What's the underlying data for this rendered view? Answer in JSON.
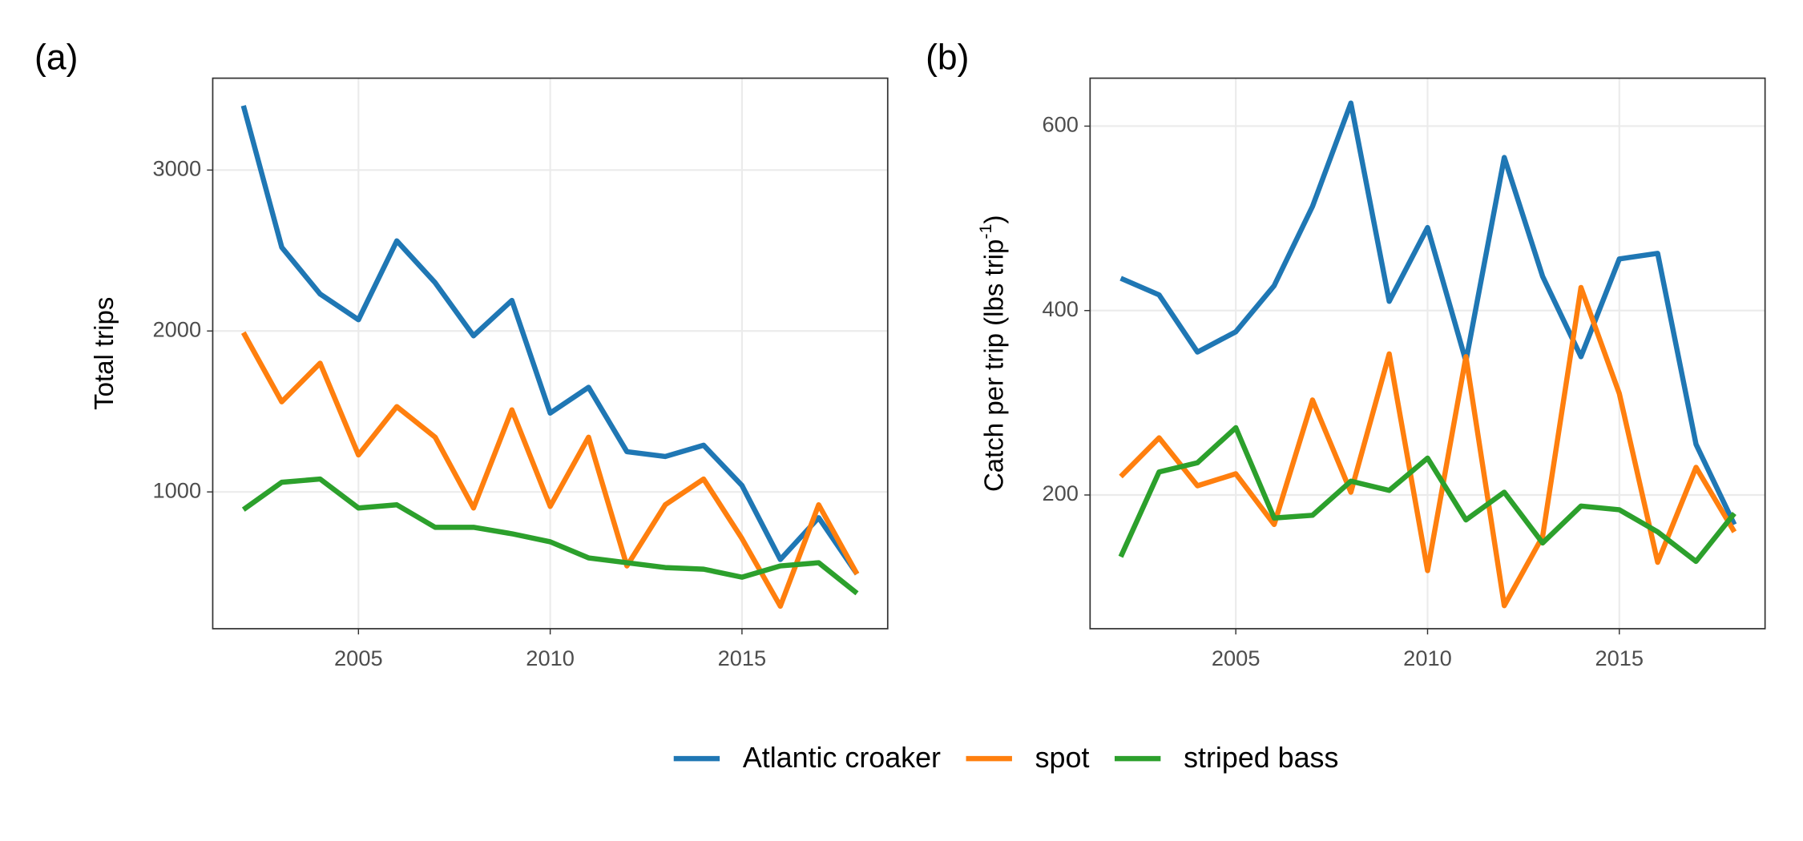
{
  "chart_data": [
    {
      "type": "line",
      "panel_label": "(a)",
      "ylabel": "Total trips",
      "x": [
        2002,
        2003,
        2004,
        2005,
        2006,
        2007,
        2008,
        2009,
        2010,
        2011,
        2012,
        2013,
        2014,
        2015,
        2016,
        2017,
        2018
      ],
      "xlim": [
        2001.2,
        2018.8
      ],
      "xticks": [
        2005,
        2010,
        2015
      ],
      "ylim": [
        150,
        3571
      ],
      "yticks": [
        1000,
        2000,
        3000
      ],
      "grid": true,
      "series": [
        {
          "name": "Atlantic croaker",
          "color": "#1f77b4",
          "values": [
            3400,
            2520,
            2230,
            2070,
            2560,
            2300,
            1970,
            2190,
            1490,
            1650,
            1250,
            1220,
            1290,
            1040,
            580,
            840,
            490
          ]
        },
        {
          "name": "spot",
          "color": "#ff7f0e",
          "values": [
            1990,
            1560,
            1800,
            1230,
            1530,
            1340,
            900,
            1510,
            910,
            1340,
            540,
            920,
            1080,
            710,
            290,
            920,
            490
          ]
        },
        {
          "name": "striped bass",
          "color": "#2ca02c",
          "values": [
            890,
            1060,
            1080,
            900,
            920,
            780,
            780,
            740,
            690,
            590,
            560,
            530,
            520,
            470,
            540,
            560,
            370
          ]
        }
      ]
    },
    {
      "type": "line",
      "panel_label": "(b)",
      "ylabel": "Catch per trip (lbs trip",
      "ylabel_sup": "-1",
      "ylabel_end": ")",
      "x": [
        2002,
        2003,
        2004,
        2005,
        2006,
        2007,
        2008,
        2009,
        2010,
        2011,
        2012,
        2013,
        2014,
        2015,
        2016,
        2017,
        2018
      ],
      "xlim": [
        2001.2,
        2018.8
      ],
      "xticks": [
        2005,
        2010,
        2015
      ],
      "ylim": [
        55,
        652
      ],
      "yticks": [
        200,
        400,
        600
      ],
      "grid": true,
      "series": [
        {
          "name": "Atlantic croaker",
          "color": "#1f77b4",
          "values": [
            435,
            417,
            355,
            377,
            427,
            513,
            625,
            410,
            490,
            345,
            566,
            437,
            350,
            456,
            462,
            255,
            168
          ]
        },
        {
          "name": "spot",
          "color": "#ff7f0e",
          "values": [
            220,
            262,
            210,
            223,
            168,
            303,
            203,
            353,
            118,
            350,
            80,
            155,
            425,
            310,
            127,
            230,
            160
          ]
        },
        {
          "name": "striped bass",
          "color": "#2ca02c",
          "values": [
            133,
            225,
            235,
            273,
            175,
            178,
            215,
            205,
            240,
            173,
            203,
            148,
            188,
            184,
            160,
            128,
            180
          ]
        }
      ]
    }
  ]
}
